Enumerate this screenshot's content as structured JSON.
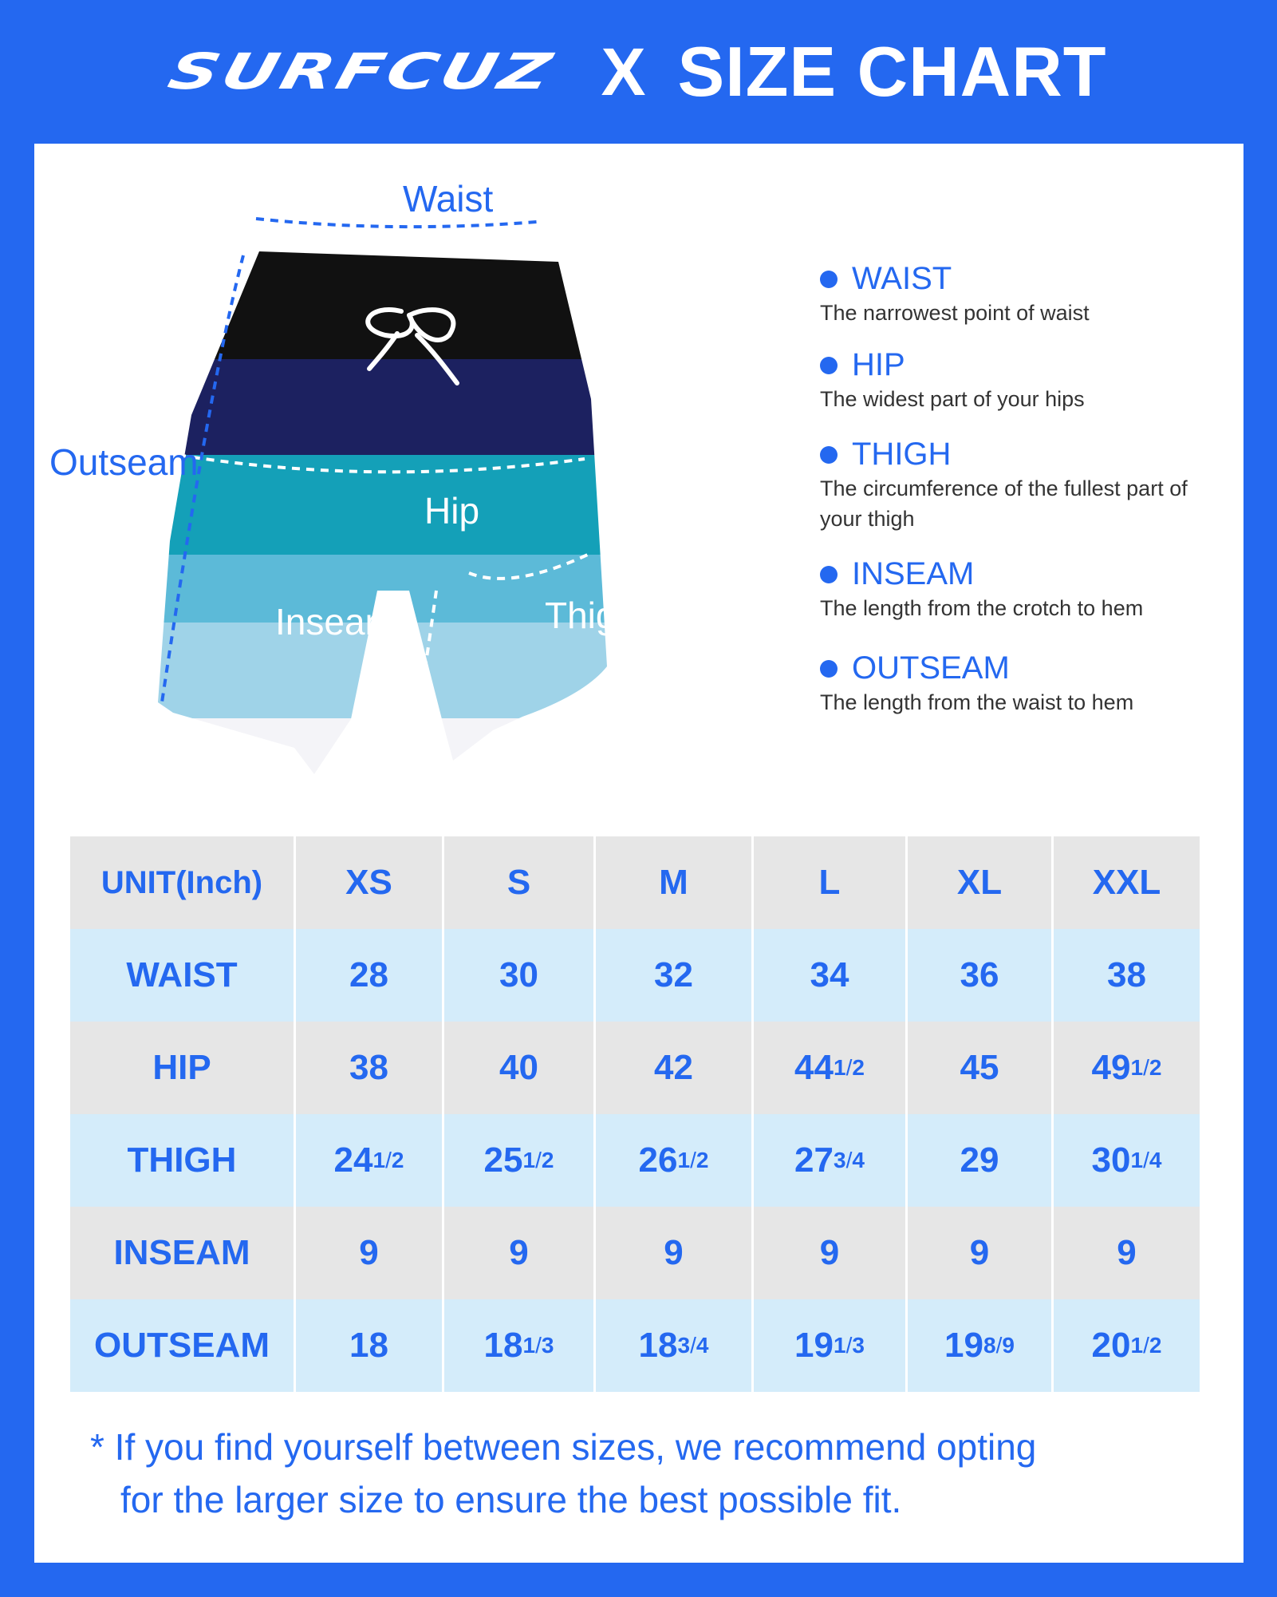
{
  "header": {
    "brand": "SURFCUZ",
    "separator": "X",
    "title": "SIZE CHART"
  },
  "illustration": {
    "labels": {
      "waist": "Waist",
      "outseam": "Outseam",
      "hip": "Hip",
      "inseam": "Inseam",
      "thigh": "Thigh"
    },
    "short_colors": [
      "#111111",
      "#1c2160",
      "#14a0b8",
      "#5cbad8",
      "#9fd3e8",
      "#f4f4f8"
    ]
  },
  "legend": [
    {
      "name": "WAIST",
      "desc": "The narrowest point of waist"
    },
    {
      "name": "HIP",
      "desc": "The widest part of your hips"
    },
    {
      "name": "THIGH",
      "desc": "The circumference of the fullest part of your thigh"
    },
    {
      "name": "INSEAM",
      "desc": "The length from the crotch to hem"
    },
    {
      "name": "OUTSEAM",
      "desc": "The length from the waist to hem"
    }
  ],
  "table": {
    "header": [
      "UNIT(Inch)",
      "XS",
      "S",
      "M",
      "L",
      "XL",
      "XXL"
    ],
    "rows": [
      {
        "label": "WAIST",
        "values": [
          "28",
          "30",
          "32",
          "34",
          "36",
          "38"
        ]
      },
      {
        "label": "HIP",
        "values": [
          "38",
          "40",
          "42",
          "44 1/2",
          "45",
          "49 1/2"
        ]
      },
      {
        "label": "THIGH",
        "values": [
          "24 1/2",
          "25 1/2",
          "26 1/2",
          "27 3/4",
          "29",
          "30 1/4"
        ]
      },
      {
        "label": "INSEAM",
        "values": [
          "9",
          "9",
          "9",
          "9",
          "9",
          "9"
        ]
      },
      {
        "label": "OUTSEAM",
        "values": [
          "18",
          "18 1/3",
          "18 3/4",
          "19 1/3",
          "19 8/9",
          "20 1/2"
        ]
      }
    ]
  },
  "note": {
    "line1": "* If you find yourself between sizes, we recommend opting",
    "line2": "for the larger size to ensure the best possible fit."
  },
  "colors": {
    "brand_blue": "#2468f0",
    "row_gray": "#e6e6e6",
    "row_blue": "#d4ecfa"
  }
}
